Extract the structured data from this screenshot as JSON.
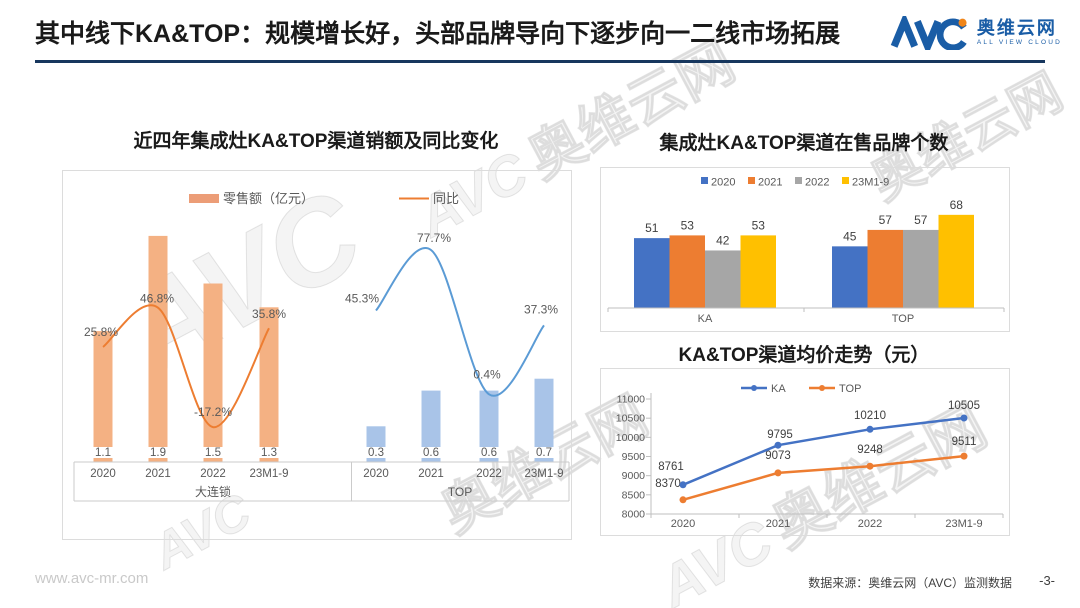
{
  "header": {
    "title": "其中线下KA&TOP：规模增长好，头部品牌导向下逐步向一二线市场拓展",
    "logo": {
      "brand": "AVC",
      "name": "奥维云网",
      "tagline": "ALL VIEW CLOUD"
    }
  },
  "watermark": {
    "brand": "AVC",
    "name": "奥维云网",
    "tagline": "ALL VIEW CLOUD"
  },
  "footer": {
    "website": "www.avc-mr.com",
    "source": "数据来源：奥维云网（AVC）监测数据",
    "page": "-3-"
  },
  "chart_data": [
    {
      "type": "bar+line",
      "title": "近四年集成灶KA&TOP渠道销额及同比变化",
      "legend": [
        {
          "label": "零售额（亿元）",
          "swatch": "bar",
          "color": "#EC9D77"
        },
        {
          "label": "同比",
          "swatch": "line",
          "color": "#ED7D31"
        }
      ],
      "categories": [
        "2020",
        "2021",
        "2022",
        "23M1-9"
      ],
      "groups": [
        {
          "name": "大连锁",
          "bar_color": "#F4B183",
          "line_color": "#ED7D31",
          "bar_values": [
            1.1,
            1.9,
            1.5,
            1.3
          ],
          "line_values_pct": [
            25.8,
            46.8,
            -17.2,
            35.8
          ]
        },
        {
          "name": "TOP",
          "bar_color": "#A9C4E8",
          "line_color": "#5B9BD5",
          "bar_values": [
            0.3,
            0.6,
            0.6,
            0.7
          ],
          "line_values_pct": [
            45.3,
            77.7,
            0.4,
            37.3
          ]
        }
      ]
    },
    {
      "type": "bar",
      "title": "集成灶KA&TOP渠道在售品牌个数",
      "categories": [
        "KA",
        "TOP"
      ],
      "legend_position": "top",
      "series": [
        {
          "name": "2020",
          "color": "#4472C4",
          "values": [
            51,
            45
          ]
        },
        {
          "name": "2021",
          "color": "#ED7D31",
          "values": [
            53,
            57
          ]
        },
        {
          "name": "2022",
          "color": "#A6A6A6",
          "values": [
            42,
            57
          ]
        },
        {
          "name": "23M1-9",
          "color": "#FFC000",
          "values": [
            53,
            68
          ]
        }
      ]
    },
    {
      "type": "line",
      "title": "KA&TOP渠道均价走势（元）",
      "categories": [
        "2020",
        "2021",
        "2022",
        "23M1-9"
      ],
      "series": [
        {
          "name": "KA",
          "color": "#4472C4",
          "values": [
            8761,
            9795,
            10210,
            10505
          ]
        },
        {
          "name": "TOP",
          "color": "#ED7D31",
          "values": [
            8370,
            9073,
            9248,
            9511
          ]
        }
      ],
      "ylim": [
        8000,
        11000
      ],
      "yticks": [
        8000,
        8500,
        9000,
        9500,
        10000,
        10500,
        11000
      ],
      "legend_position": "top"
    }
  ]
}
